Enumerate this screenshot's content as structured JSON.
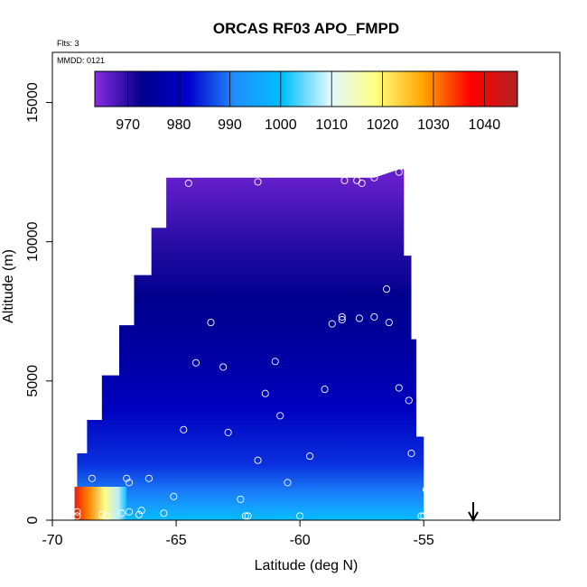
{
  "chart_data": {
    "type": "heatmap",
    "title": "ORCAS RF03 APO_FMPD",
    "xlabel": "Latitude (deg N)",
    "ylabel": "Altitude (m)",
    "xlim": [
      -70,
      -49.5
    ],
    "ylim": [
      0,
      16800
    ],
    "x_ticks": [
      -70,
      -65,
      -60,
      -55
    ],
    "x_tick_labels": [
      "-70",
      "-65",
      "-60",
      "-55"
    ],
    "y_ticks": [
      0,
      5000,
      10000,
      15000
    ],
    "y_tick_labels": [
      "0",
      "5000",
      "10000",
      "15000"
    ],
    "annotations": {
      "flights": "Flts: 3",
      "date": "MMDD: 0121"
    },
    "colorbar": {
      "range": [
        963.5,
        1046.5
      ],
      "ticks": [
        970,
        980,
        990,
        1000,
        1010,
        1020,
        1030,
        1040
      ],
      "tick_labels": [
        "970",
        "980",
        "990",
        "1000",
        "1010",
        "1020",
        "1030",
        "1040"
      ],
      "colors": [
        "#8a2be2",
        "#00008b",
        "#0000cd",
        "#1e90ff",
        "#00bfff",
        "#e0f7ff",
        "#ffff80",
        "#ffa500",
        "#ff0000",
        "#b22222"
      ]
    },
    "data_envelope": {
      "left_edge": [
        {
          "alt": 300,
          "lat": -69.1
        },
        {
          "alt": 1200,
          "lat": -69.0
        },
        {
          "alt": 2400,
          "lat": -68.6
        },
        {
          "alt": 3600,
          "lat": -68.0
        },
        {
          "alt": 5200,
          "lat": -67.3
        },
        {
          "alt": 7000,
          "lat": -66.7
        },
        {
          "alt": 8800,
          "lat": -66.0
        },
        {
          "alt": 10500,
          "lat": -65.4
        },
        {
          "alt": 12300,
          "lat": -64.6
        }
      ],
      "top_edge": [
        {
          "lat": -64.6,
          "alt": 12300
        },
        {
          "lat": -57.0,
          "alt": 12300
        },
        {
          "lat": -56.0,
          "alt": 12600
        }
      ],
      "right_edge": [
        {
          "alt": 12600,
          "lat": -55.8
        },
        {
          "alt": 9500,
          "lat": -55.5
        },
        {
          "alt": 6500,
          "lat": -55.3
        },
        {
          "alt": 3000,
          "lat": -55.0
        },
        {
          "alt": 0,
          "lat": -54.8
        }
      ],
      "bottom_left_lat": -69.1
    },
    "value_field_description_points": [
      {
        "alt": 12300,
        "value": 966
      },
      {
        "alt": 10000,
        "value": 970
      },
      {
        "alt": 8000,
        "value": 973
      },
      {
        "alt": 6000,
        "value": 976
      },
      {
        "alt": 4000,
        "value": 980
      },
      {
        "alt": 2000,
        "value": 985
      },
      {
        "alt": 1000,
        "value": 990
      },
      {
        "alt": 400,
        "value": 995
      }
    ],
    "hotspot": {
      "lat_range": [
        -69.2,
        -67.0
      ],
      "alt_range": [
        0,
        1200
      ],
      "max_value": 1040
    },
    "observations": [
      {
        "lat": -64.5,
        "alt": 12100
      },
      {
        "lat": -61.7,
        "alt": 12150
      },
      {
        "lat": -58.2,
        "alt": 12200
      },
      {
        "lat": -57.7,
        "alt": 12200
      },
      {
        "lat": -57.5,
        "alt": 12100
      },
      {
        "lat": -57.0,
        "alt": 12300
      },
      {
        "lat": -56.0,
        "alt": 12500
      },
      {
        "lat": -56.5,
        "alt": 8300
      },
      {
        "lat": -56.4,
        "alt": 7100
      },
      {
        "lat": -57.0,
        "alt": 7300
      },
      {
        "lat": -57.6,
        "alt": 7250
      },
      {
        "lat": -58.3,
        "alt": 7300
      },
      {
        "lat": -58.3,
        "alt": 7200
      },
      {
        "lat": -58.7,
        "alt": 7050
      },
      {
        "lat": -63.6,
        "alt": 7100
      },
      {
        "lat": -64.2,
        "alt": 5650
      },
      {
        "lat": -63.1,
        "alt": 5500
      },
      {
        "lat": -61.0,
        "alt": 5700
      },
      {
        "lat": -61.4,
        "alt": 4550
      },
      {
        "lat": -59.0,
        "alt": 4700
      },
      {
        "lat": -56.0,
        "alt": 4750
      },
      {
        "lat": -55.6,
        "alt": 4300
      },
      {
        "lat": -60.8,
        "alt": 3750
      },
      {
        "lat": -64.7,
        "alt": 3250
      },
      {
        "lat": -62.9,
        "alt": 3150
      },
      {
        "lat": -61.7,
        "alt": 2150
      },
      {
        "lat": -59.6,
        "alt": 2300
      },
      {
        "lat": -55.5,
        "alt": 2400
      },
      {
        "lat": -60.5,
        "alt": 1350
      },
      {
        "lat": -68.4,
        "alt": 1500
      },
      {
        "lat": -67.0,
        "alt": 1500
      },
      {
        "lat": -66.1,
        "alt": 1500
      },
      {
        "lat": -66.9,
        "alt": 1350
      },
      {
        "lat": -65.1,
        "alt": 850
      },
      {
        "lat": -62.4,
        "alt": 750
      },
      {
        "lat": -54.9,
        "alt": 1100
      },
      {
        "lat": -69.0,
        "alt": 300
      },
      {
        "lat": -69.0,
        "alt": 150
      },
      {
        "lat": -68.0,
        "alt": 200
      },
      {
        "lat": -67.8,
        "alt": 150
      },
      {
        "lat": -67.2,
        "alt": 250
      },
      {
        "lat": -66.9,
        "alt": 300
      },
      {
        "lat": -66.5,
        "alt": 200
      },
      {
        "lat": -66.4,
        "alt": 350
      },
      {
        "lat": -65.5,
        "alt": 250
      },
      {
        "lat": -62.2,
        "alt": 150
      },
      {
        "lat": -62.1,
        "alt": 150
      },
      {
        "lat": -60.0,
        "alt": 150
      },
      {
        "lat": -55.1,
        "alt": 150
      },
      {
        "lat": -55.0,
        "alt": 150
      }
    ],
    "arrow_marker": {
      "lat": -53.0,
      "direction": "down"
    }
  }
}
